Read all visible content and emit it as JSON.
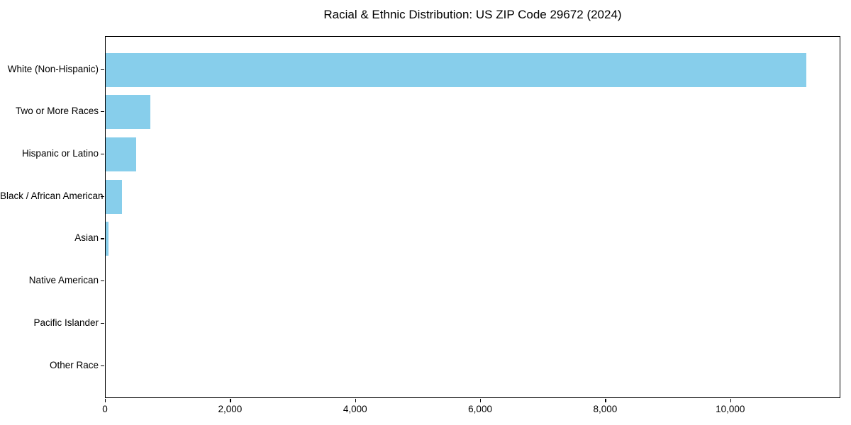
{
  "title": "Racial & Ethnic Distribution: US ZIP Code 29672 (2024)",
  "chart_data": {
    "type": "bar",
    "orientation": "horizontal",
    "title": "Racial & Ethnic Distribution: US ZIP Code 29672 (2024)",
    "xlabel": "",
    "ylabel": "",
    "categories": [
      "White (Non-Hispanic)",
      "Two or More Races",
      "Hispanic or Latino",
      "Black / African American",
      "Asian",
      "Native American",
      "Pacific Islander",
      "Other Race"
    ],
    "values": [
      11200,
      715,
      485,
      265,
      40,
      0,
      0,
      0
    ],
    "xlim": [
      0,
      11760
    ],
    "x_ticks": [
      0,
      2000,
      4000,
      6000,
      8000,
      10000
    ],
    "x_tick_labels": [
      "0",
      "2,000",
      "4,000",
      "6,000",
      "8,000",
      "10,000"
    ],
    "bar_color": "#87CEEB",
    "axis_color": "#000000",
    "grid": false,
    "legend": "none"
  }
}
